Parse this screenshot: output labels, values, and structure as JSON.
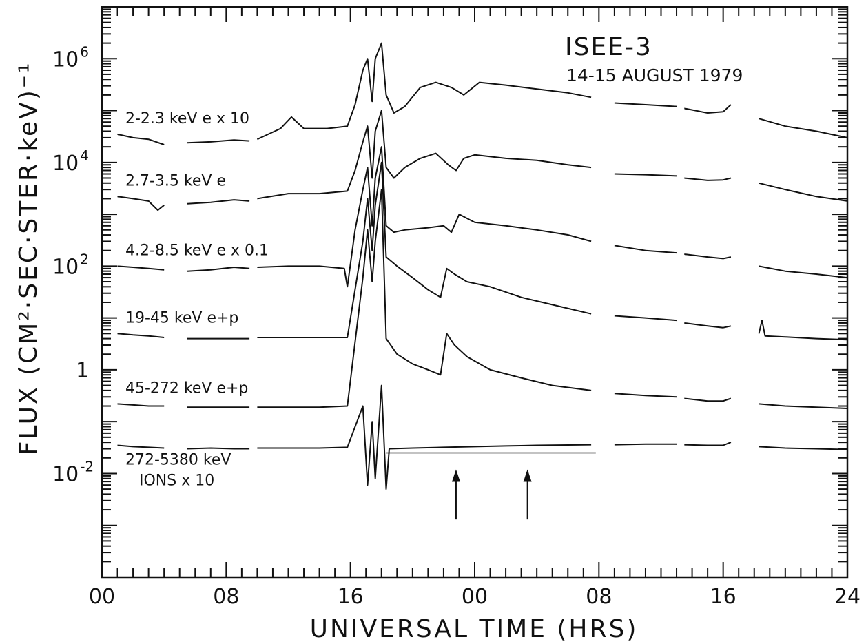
{
  "chart_data": {
    "type": "line",
    "title": "ISEE-3",
    "subtitle": "14-15 AUGUST 1979",
    "xlabel": "UNIVERSAL TIME (HRS)",
    "ylabel": "FLUX (CM²·SEC·STER·keV)⁻¹",
    "x_unit": "hours since 00 UT, 14 August 1979",
    "xlim": [
      0,
      48
    ],
    "x_tick_labels": [
      "00",
      "08",
      "16",
      "00",
      "08",
      "16",
      "24"
    ],
    "yscale": "log",
    "ylim": [
      0.0001,
      10000000
    ],
    "y_tick_labels": [
      {
        "base": "10",
        "exp": "6",
        "value": 1000000
      },
      {
        "base": "10",
        "exp": "4",
        "value": 10000
      },
      {
        "base": "10",
        "exp": "2",
        "value": 100
      },
      {
        "base": "1",
        "exp": "",
        "value": 1
      },
      {
        "base": "10",
        "exp": "-2",
        "value": 0.01
      }
    ],
    "series": [
      {
        "name": "2-2.3 keV e x 10",
        "label_lines": [
          "2-2.3 keV e x 10"
        ],
        "segments": [
          [
            [
              1,
              35000
            ],
            [
              2,
              30000
            ],
            [
              3,
              28000
            ],
            [
              4,
              22000
            ]
          ],
          [
            [
              5.5,
              24000
            ],
            [
              7,
              25000
            ],
            [
              8.5,
              27000
            ],
            [
              9.5,
              26000
            ]
          ],
          [
            [
              10,
              28000
            ],
            [
              11.5,
              45000
            ],
            [
              12.2,
              75000
            ],
            [
              13,
              45000
            ],
            [
              14.5,
              45000
            ],
            [
              15.8,
              50000
            ],
            [
              16.3,
              130000
            ],
            [
              16.8,
              600000
            ],
            [
              17.1,
              1000000
            ],
            [
              17.4,
              150000
            ],
            [
              17.6,
              1000000
            ],
            [
              18,
              2000000
            ],
            [
              18.3,
              200000
            ],
            [
              18.8,
              90000
            ],
            [
              19.5,
              120000
            ],
            [
              20.5,
              280000
            ],
            [
              21.5,
              350000
            ],
            [
              22.5,
              280000
            ],
            [
              23.3,
              200000
            ],
            [
              24.3,
              350000
            ],
            [
              26,
              310000
            ],
            [
              28,
              260000
            ],
            [
              30,
              220000
            ],
            [
              31.5,
              180000
            ]
          ],
          [
            [
              33,
              140000
            ],
            [
              35,
              130000
            ],
            [
              37,
              120000
            ]
          ],
          [
            [
              37.5,
              110000
            ],
            [
              39,
              90000
            ],
            [
              40,
              95000
            ],
            [
              40.5,
              130000
            ]
          ],
          [
            [
              42.3,
              70000
            ],
            [
              44,
              50000
            ],
            [
              46,
              40000
            ],
            [
              48,
              30000
            ]
          ]
        ]
      },
      {
        "name": "2.7-3.5 keV e",
        "label_lines": [
          "2.7-3.5 keV e"
        ],
        "segments": [
          [
            [
              1,
              2200
            ],
            [
              2,
              2000
            ],
            [
              3,
              1800
            ],
            [
              3.6,
              1200
            ],
            [
              4,
              1500
            ]
          ],
          [
            [
              5.5,
              1600
            ],
            [
              7,
              1700
            ],
            [
              8.5,
              1900
            ],
            [
              9.5,
              1800
            ]
          ],
          [
            [
              10,
              2000
            ],
            [
              12,
              2500
            ],
            [
              14,
              2500
            ],
            [
              15.8,
              2800
            ],
            [
              16.3,
              7000
            ],
            [
              16.8,
              25000
            ],
            [
              17.1,
              50000
            ],
            [
              17.4,
              5000
            ],
            [
              17.6,
              40000
            ],
            [
              18,
              100000
            ],
            [
              18.3,
              8000
            ],
            [
              18.8,
              5000
            ],
            [
              19.5,
              8000
            ],
            [
              20.5,
              12000
            ],
            [
              21.5,
              15000
            ],
            [
              22.3,
              9000
            ],
            [
              22.8,
              7000
            ],
            [
              23.3,
              12000
            ],
            [
              24,
              14000
            ],
            [
              26,
              12000
            ],
            [
              28,
              11000
            ],
            [
              30,
              9000
            ],
            [
              31.5,
              8000
            ]
          ],
          [
            [
              33,
              6000
            ],
            [
              35,
              5800
            ],
            [
              37,
              5500
            ]
          ],
          [
            [
              37.5,
              5000
            ],
            [
              39,
              4500
            ],
            [
              40,
              4600
            ],
            [
              40.5,
              5000
            ]
          ],
          [
            [
              42.3,
              4000
            ],
            [
              44,
              3000
            ],
            [
              46,
              2200
            ],
            [
              48,
              1800
            ]
          ]
        ]
      },
      {
        "name": "4.2-8.5 keV e x 0.1",
        "label_lines": [
          "4.2-8.5 keV e x 0.1"
        ],
        "segments": [
          [
            [
              1,
              100
            ],
            [
              2,
              95
            ],
            [
              3,
              90
            ],
            [
              4,
              85
            ]
          ],
          [
            [
              5.5,
              80
            ],
            [
              7,
              85
            ],
            [
              8.5,
              95
            ],
            [
              9.5,
              90
            ]
          ],
          [
            [
              10,
              95
            ],
            [
              12,
              100
            ],
            [
              14,
              100
            ],
            [
              15.6,
              90
            ],
            [
              15.8,
              40
            ],
            [
              16.3,
              500
            ],
            [
              16.8,
              3000
            ],
            [
              17.1,
              8000
            ],
            [
              17.4,
              600
            ],
            [
              17.6,
              5000
            ],
            [
              18,
              20000
            ],
            [
              18.3,
              600
            ],
            [
              18.8,
              450
            ],
            [
              19.5,
              500
            ],
            [
              21,
              550
            ],
            [
              22,
              600
            ],
            [
              22.5,
              450
            ],
            [
              23,
              1000
            ],
            [
              24,
              700
            ],
            [
              26,
              600
            ],
            [
              28,
              500
            ],
            [
              30,
              400
            ],
            [
              31.5,
              300
            ]
          ],
          [
            [
              33,
              250
            ],
            [
              35,
              200
            ],
            [
              37,
              180
            ]
          ],
          [
            [
              37.5,
              170
            ],
            [
              39,
              150
            ],
            [
              40,
              140
            ],
            [
              40.5,
              150
            ]
          ],
          [
            [
              42.3,
              100
            ],
            [
              44,
              80
            ],
            [
              46,
              70
            ],
            [
              48,
              60
            ]
          ]
        ]
      },
      {
        "name": "19-45 keV e+p",
        "label_lines": [
          "19-45 keV e+p"
        ],
        "segments": [
          [
            [
              1,
              5
            ],
            [
              2,
              4.7
            ],
            [
              3,
              4.5
            ],
            [
              4,
              4.2
            ]
          ],
          [
            [
              5.5,
              4
            ],
            [
              7,
              4
            ],
            [
              8.5,
              4
            ],
            [
              9.5,
              4
            ]
          ],
          [
            [
              10,
              4.2
            ],
            [
              12,
              4.2
            ],
            [
              14,
              4.2
            ],
            [
              15.8,
              4.2
            ],
            [
              16.8,
              300
            ],
            [
              17.1,
              2000
            ],
            [
              17.4,
              200
            ],
            [
              17.6,
              1500
            ],
            [
              18,
              10000
            ],
            [
              18.3,
              150
            ],
            [
              19,
              100
            ],
            [
              20,
              60
            ],
            [
              21,
              35
            ],
            [
              21.8,
              25
            ],
            [
              22.2,
              90
            ],
            [
              22.7,
              70
            ],
            [
              23.5,
              50
            ],
            [
              25,
              40
            ],
            [
              27,
              25
            ],
            [
              29,
              18
            ],
            [
              31.5,
              12
            ]
          ],
          [
            [
              33,
              11
            ],
            [
              35,
              10
            ],
            [
              37,
              9
            ]
          ],
          [
            [
              37.5,
              8
            ],
            [
              39,
              7
            ],
            [
              40,
              6.5
            ],
            [
              40.5,
              7
            ]
          ],
          [
            [
              42.3,
              5
            ],
            [
              42.5,
              9
            ],
            [
              42.7,
              4.5
            ],
            [
              44,
              4.3
            ],
            [
              46,
              4
            ],
            [
              48,
              3.8
            ]
          ]
        ]
      },
      {
        "name": "45-272 keV e+p",
        "label_lines": [
          "45-272 keV e+p"
        ],
        "segments": [
          [
            [
              1,
              0.22
            ],
            [
              2,
              0.21
            ],
            [
              3,
              0.2
            ],
            [
              4,
              0.2
            ]
          ],
          [
            [
              5.5,
              0.19
            ],
            [
              7,
              0.19
            ],
            [
              8.5,
              0.19
            ],
            [
              9.5,
              0.19
            ]
          ],
          [
            [
              10,
              0.19
            ],
            [
              12,
              0.19
            ],
            [
              14,
              0.19
            ],
            [
              15.8,
              0.2
            ],
            [
              16.8,
              60
            ],
            [
              17.1,
              500
            ],
            [
              17.4,
              50
            ],
            [
              17.6,
              300
            ],
            [
              18,
              3000
            ],
            [
              18.3,
              4
            ],
            [
              19,
              2
            ],
            [
              20,
              1.3
            ],
            [
              21,
              1
            ],
            [
              21.8,
              0.8
            ],
            [
              22.2,
              5
            ],
            [
              22.7,
              3
            ],
            [
              23.5,
              1.8
            ],
            [
              25,
              1
            ],
            [
              27,
              0.7
            ],
            [
              29,
              0.5
            ],
            [
              31.5,
              0.4
            ]
          ],
          [
            [
              33,
              0.35
            ],
            [
              35,
              0.32
            ],
            [
              37,
              0.3
            ]
          ],
          [
            [
              37.5,
              0.28
            ],
            [
              39,
              0.25
            ],
            [
              40,
              0.25
            ],
            [
              40.5,
              0.28
            ]
          ],
          [
            [
              42.3,
              0.22
            ],
            [
              44,
              0.2
            ],
            [
              46,
              0.19
            ],
            [
              48,
              0.18
            ]
          ]
        ]
      },
      {
        "name": "272-5380 keV IONS x 10",
        "label_lines": [
          "272-5380 keV",
          "IONS x 10"
        ],
        "segments": [
          [
            [
              1,
              0.035
            ],
            [
              2,
              0.033
            ],
            [
              3,
              0.032
            ],
            [
              4,
              0.031
            ]
          ],
          [
            [
              5.5,
              0.03
            ],
            [
              7,
              0.031
            ],
            [
              8.5,
              0.03
            ],
            [
              9.5,
              0.03
            ]
          ],
          [
            [
              10,
              0.031
            ],
            [
              12,
              0.031
            ],
            [
              14,
              0.031
            ],
            [
              15.8,
              0.032
            ],
            [
              16.8,
              0.2
            ],
            [
              17.1,
              0.006
            ],
            [
              17.4,
              0.1
            ],
            [
              17.6,
              0.008
            ],
            [
              18,
              0.5
            ],
            [
              18.3,
              0.005
            ],
            [
              18.5,
              0.03
            ],
            [
              20,
              0.031
            ],
            [
              22,
              0.032
            ],
            [
              24,
              0.033
            ],
            [
              26,
              0.034
            ],
            [
              28,
              0.035
            ],
            [
              31.5,
              0.036
            ]
          ],
          [
            [
              33,
              0.036
            ],
            [
              35,
              0.037
            ],
            [
              37,
              0.037
            ]
          ],
          [
            [
              37.5,
              0.036
            ],
            [
              39,
              0.035
            ],
            [
              40,
              0.035
            ],
            [
              40.5,
              0.04
            ]
          ],
          [
            [
              42.3,
              0.033
            ],
            [
              44,
              0.031
            ],
            [
              46,
              0.03
            ],
            [
              48,
              0.029
            ]
          ]
        ]
      }
    ],
    "annotations": [
      {
        "type": "horizontal-line",
        "x": [
          18.3,
          31.8
        ],
        "y": 0.025
      },
      {
        "type": "up-arrow",
        "x": 22.8,
        "y_from": 0.0013,
        "y_to": 0.012
      },
      {
        "type": "up-arrow",
        "x": 27.4,
        "y_from": 0.0013,
        "y_to": 0.012
      }
    ],
    "grid": false,
    "legend": "none"
  }
}
